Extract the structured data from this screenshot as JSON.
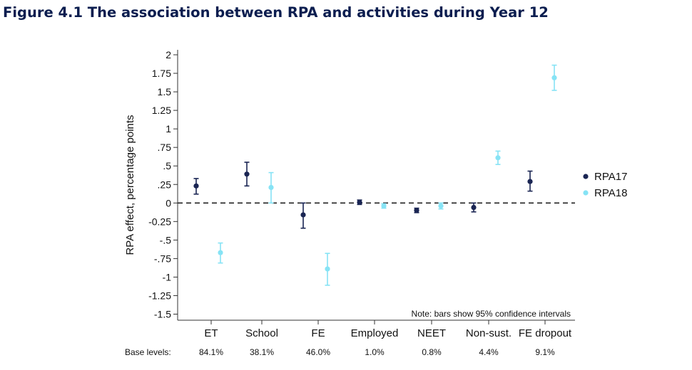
{
  "title": "Figure 4.1 The association between RPA and activities during Year 12",
  "chart_data": {
    "type": "scatter",
    "title": "Figure 4.1 The association between RPA and activities during Year 12",
    "xlabel": "",
    "ylabel": "RPA effect, percentage points",
    "ylim": [
      -1.5,
      2
    ],
    "yticks": [
      "2",
      "1.75",
      "1.5",
      "1.25",
      "1",
      ".75",
      ".5",
      ".25",
      "0",
      "-0.25",
      "-.5",
      "-.75",
      "-1",
      "-1.25",
      "-1.5"
    ],
    "ytick_values": [
      2,
      1.75,
      1.5,
      1.25,
      1,
      0.75,
      0.5,
      0.25,
      0,
      -0.25,
      -0.5,
      -0.75,
      -1,
      -1.25,
      -1.5
    ],
    "categories": [
      "ET",
      "School",
      "FE",
      "Employed",
      "NEET",
      "Non-sust.",
      "FE dropout"
    ],
    "base_levels_label": "Base levels:",
    "base_levels": [
      "84.1%",
      "38.1%",
      "46.0%",
      "1.0%",
      "0.8%",
      "4.4%",
      "9.1%"
    ],
    "series": [
      {
        "name": "RPA17",
        "color": "#1a2553",
        "values": [
          0.23,
          0.39,
          -0.16,
          0.01,
          -0.1,
          -0.06,
          0.29
        ],
        "ci_low": [
          0.12,
          0.23,
          -0.34,
          -0.02,
          -0.13,
          -0.12,
          0.16
        ],
        "ci_high": [
          0.33,
          0.55,
          0.0,
          0.04,
          -0.07,
          0.0,
          0.43
        ]
      },
      {
        "name": "RPA18",
        "color": "#86e3f5",
        "values": [
          -0.67,
          0.21,
          -0.89,
          -0.04,
          -0.04,
          0.61,
          1.69
        ],
        "ci_low": [
          -0.81,
          0.0,
          -1.11,
          -0.07,
          -0.08,
          0.52,
          1.52
        ],
        "ci_high": [
          -0.54,
          0.41,
          -0.68,
          -0.01,
          0.0,
          0.7,
          1.86
        ]
      }
    ],
    "reference_line": 0,
    "legend_position": "right",
    "note": "Note: bars show 95% confidence intervals"
  }
}
